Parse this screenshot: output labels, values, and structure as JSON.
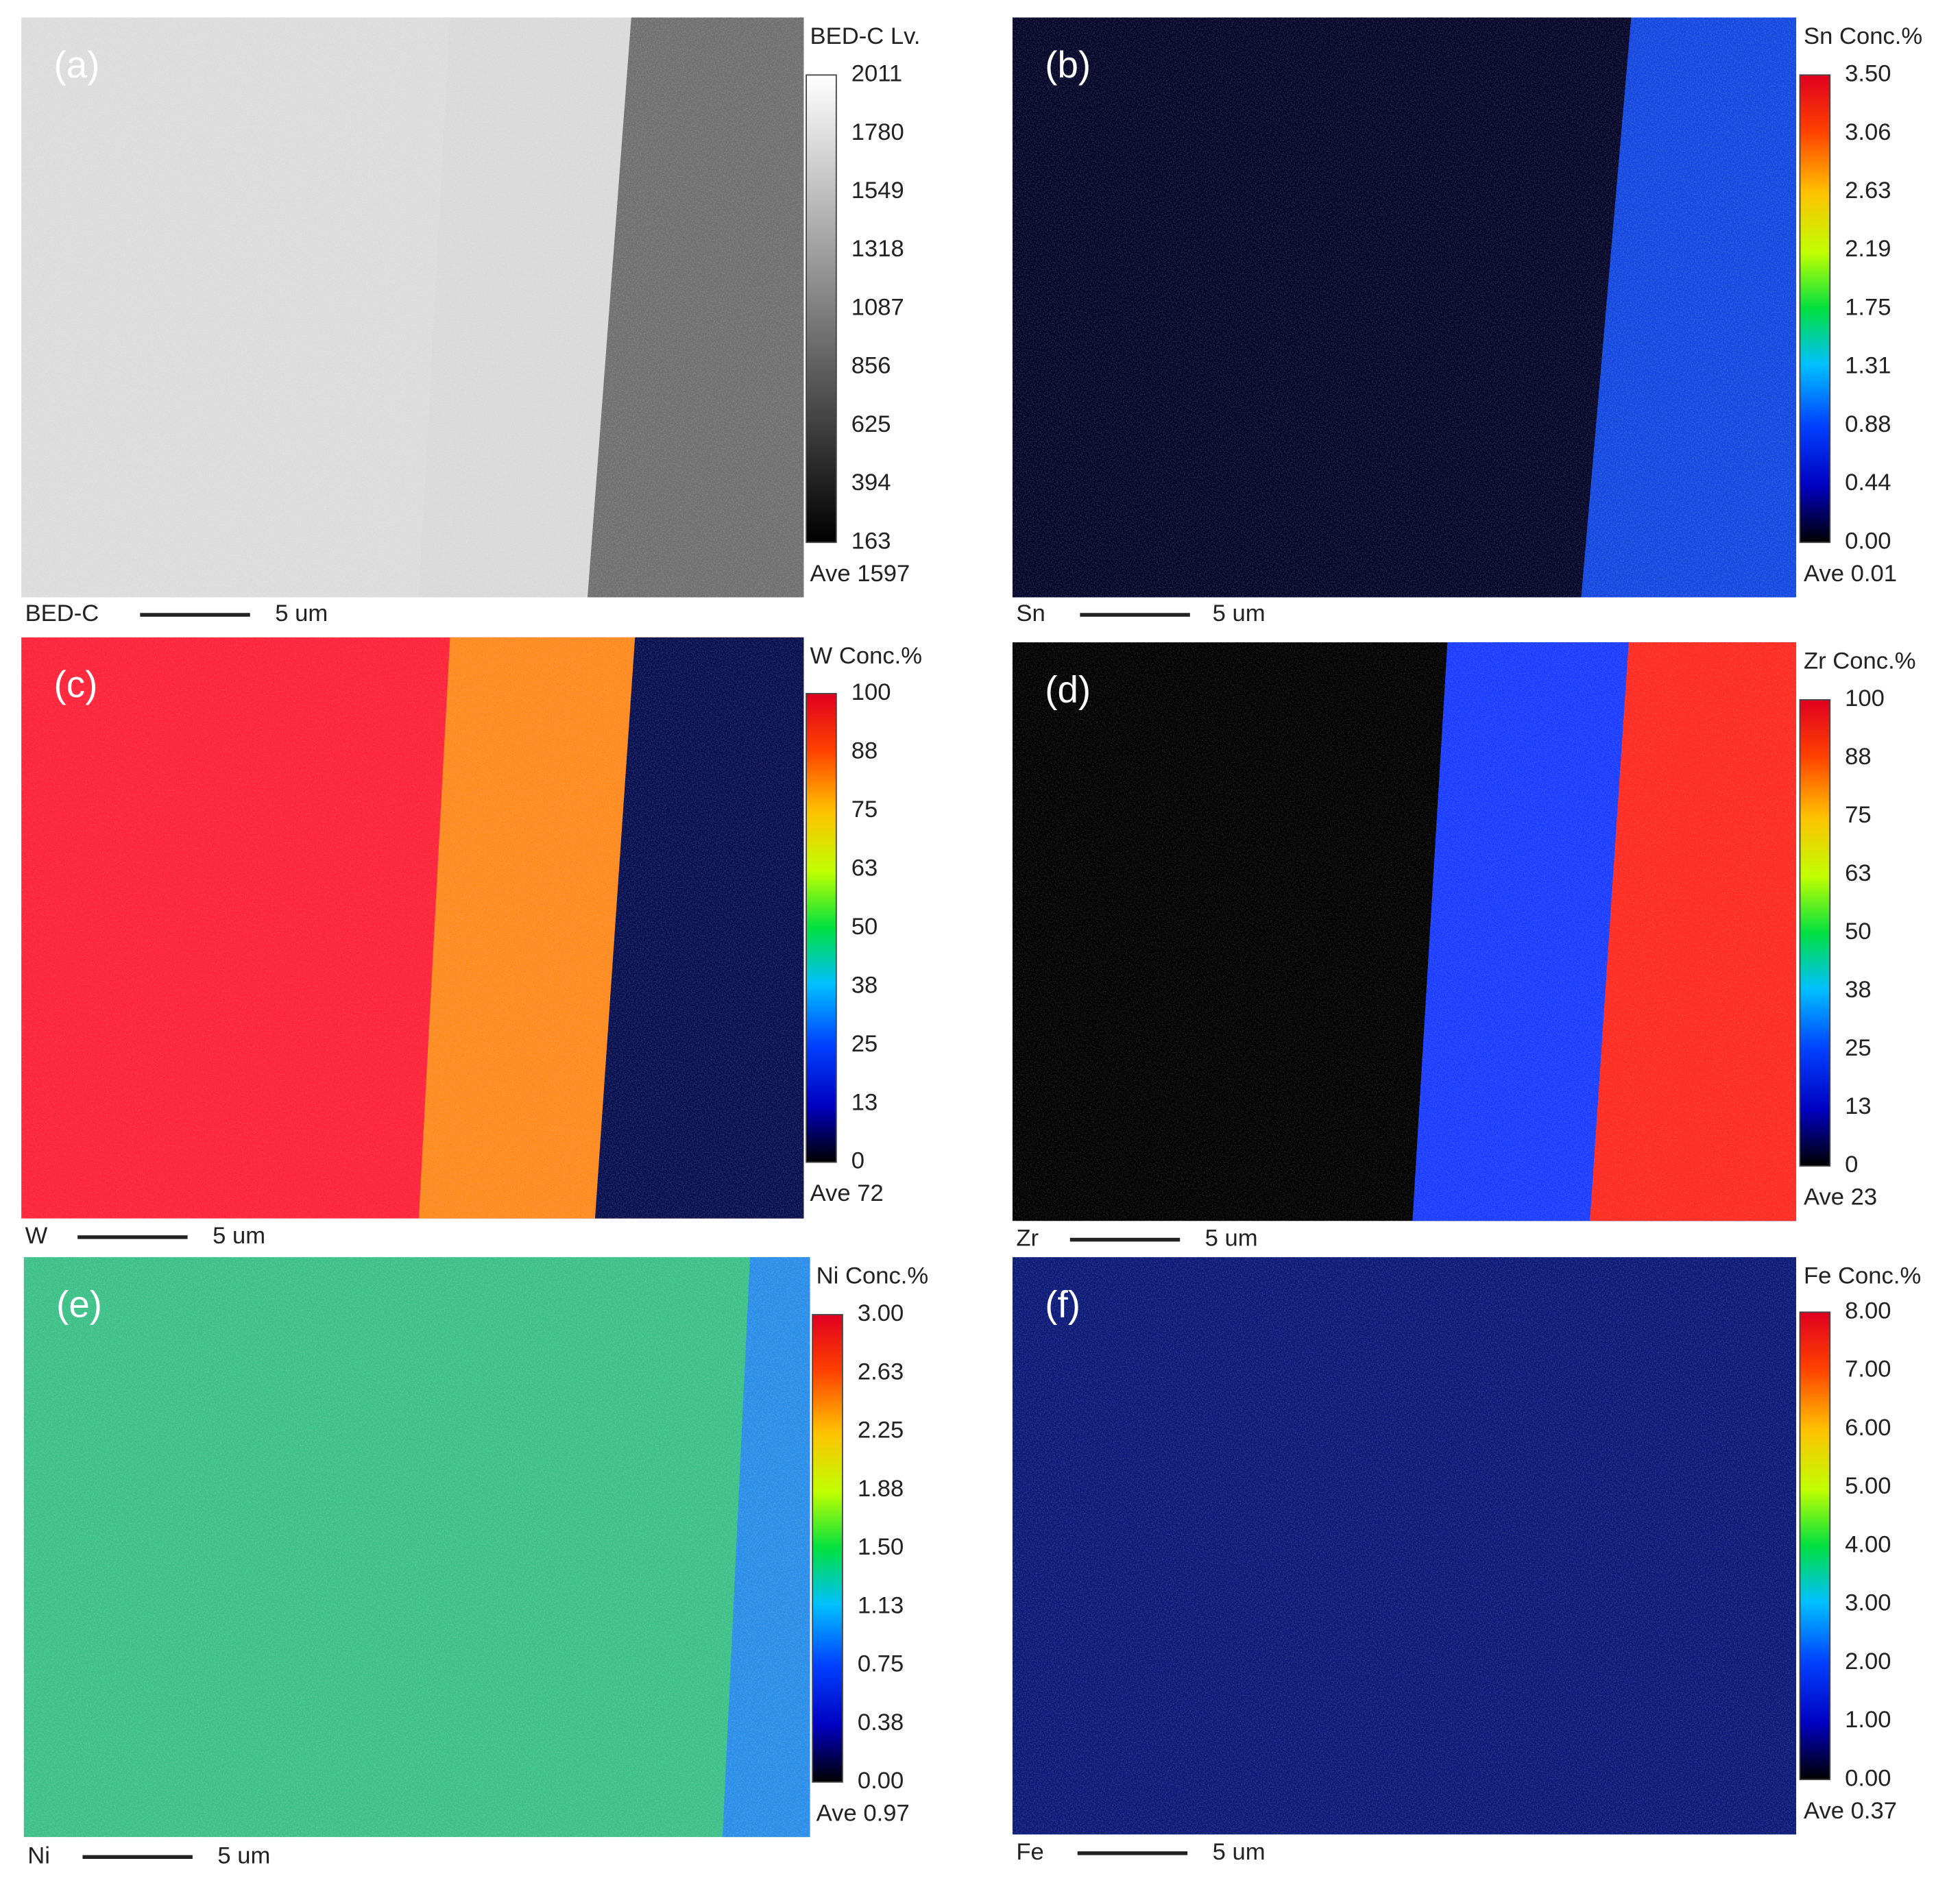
{
  "panels": [
    {
      "label": "(a)",
      "scale_title": "BED-C Lv.",
      "ticks": [
        "2011",
        "1780",
        "1549",
        "1318",
        "1087",
        "856",
        "625",
        "394",
        "163"
      ],
      "average": "Ave 1597",
      "element": "BED-C",
      "scale_bar": "5 um"
    },
    {
      "label": "(b)",
      "scale_title": "Sn Conc.%",
      "ticks": [
        "3.50",
        "3.06",
        "2.63",
        "2.19",
        "1.75",
        "1.31",
        "0.88",
        "0.44",
        "0.00"
      ],
      "average": "Ave 0.01",
      "element": "Sn",
      "scale_bar": "5 um"
    },
    {
      "label": "(c)",
      "scale_title": "W Conc.%",
      "ticks": [
        "100",
        "88",
        "75",
        "63",
        "50",
        "38",
        "25",
        "13",
        "0"
      ],
      "average": "Ave 72",
      "element": "W",
      "scale_bar": "5 um"
    },
    {
      "label": "(d)",
      "scale_title": "Zr Conc.%",
      "ticks": [
        "100",
        "88",
        "75",
        "63",
        "50",
        "38",
        "25",
        "13",
        "0"
      ],
      "average": "Ave 23",
      "element": "Zr",
      "scale_bar": "5 um"
    },
    {
      "label": "(e)",
      "scale_title": "Ni Conc.%",
      "ticks": [
        "3.00",
        "2.63",
        "2.25",
        "1.88",
        "1.50",
        "1.13",
        "0.75",
        "0.38",
        "0.00"
      ],
      "average": "Ave 0.97",
      "element": "Ni",
      "scale_bar": "5 um"
    },
    {
      "label": "(f)",
      "scale_title": "Fe Conc.%",
      "ticks": [
        "8.00",
        "7.00",
        "6.00",
        "5.00",
        "4.00",
        "3.00",
        "2.00",
        "1.00",
        "0.00"
      ],
      "average": "Ave 0.37",
      "element": "Fe",
      "scale_bar": "5 um"
    }
  ]
}
